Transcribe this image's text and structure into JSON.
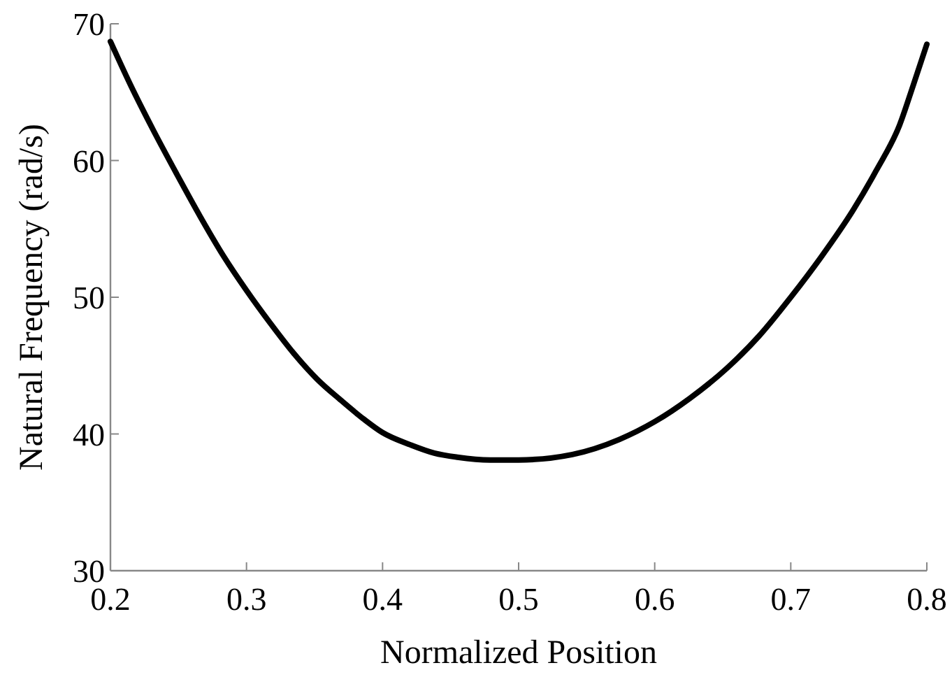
{
  "chart_data": {
    "type": "line",
    "xlabel": "Normalized Position",
    "ylabel": "Natural Frequency (rad/s)",
    "xlim": [
      0.2,
      0.8
    ],
    "xticks": [
      0.2,
      0.3,
      0.4,
      0.5,
      0.6,
      0.7,
      0.8
    ],
    "ylim": [
      30,
      70
    ],
    "yticks": [
      30,
      40,
      50,
      60,
      70
    ],
    "grid": false,
    "marker": "none",
    "line_style": "solid",
    "series": [
      {
        "color": "#000000",
        "x": [
          0.2,
          0.2144,
          0.2316,
          0.2488,
          0.266,
          0.2832,
          0.3,
          0.3175,
          0.3347,
          0.352,
          0.369,
          0.386,
          0.4,
          0.4206,
          0.438,
          0.455,
          0.479,
          0.5,
          0.5395,
          0.574,
          0.6,
          0.6257,
          0.653,
          0.677,
          0.7,
          0.722,
          0.746,
          0.763,
          0.78,
          0.79,
          0.8
        ],
        "values": [
          68.7,
          65.6,
          62.2,
          59.0,
          55.9,
          53.0,
          50.5,
          48.1,
          45.9,
          44.0,
          42.5,
          41.1,
          40.1,
          39.2,
          38.6,
          38.3,
          38.1,
          38.1,
          38.5,
          39.6,
          40.9,
          42.6,
          44.8,
          47.2,
          50.0,
          52.9,
          56.4,
          59.3,
          62.6,
          65.5,
          68.5
        ]
      }
    ]
  }
}
